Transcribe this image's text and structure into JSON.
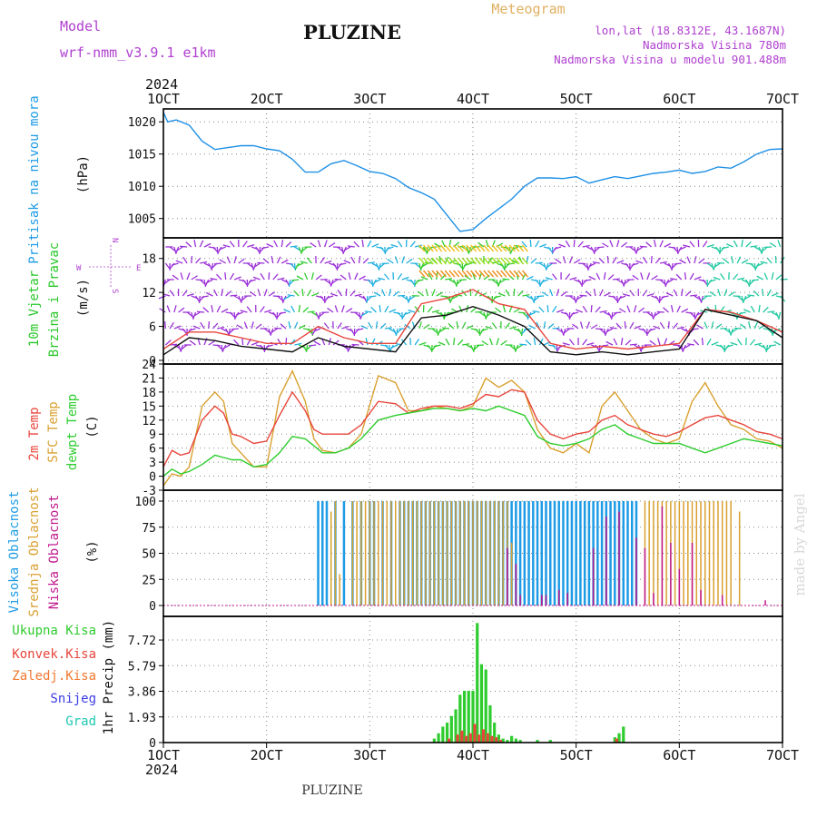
{
  "header": {
    "title": "PLUZINE",
    "model_label": "Model",
    "model_name": "wrf-nmm_v3.9.1 e1km",
    "meteogram_label": "Meteogram",
    "lonlat": "lon,lat (18.8312E, 43.1687N)",
    "elevation": "Nadmorska Visina 780m",
    "model_elevation": "Nadmorska Visina u modelu 901.488m",
    "footer_title": "PLUZINE",
    "watermark": "made by Angel"
  },
  "colors": {
    "pressure": "#1e90e6",
    "temp2m": "#e8463c",
    "sfc_temp": "#d9a030",
    "dewpt": "#2ecc2e",
    "high_cloud": "#1e9be6",
    "mid_cloud": "#d9a030",
    "low_cloud": "#c0188c",
    "total_precip": "#2ecc2e",
    "convective_precip": "#e8463c",
    "freezing_precip": "#f07830",
    "snow": "#3c3ce6",
    "graupel": "#20c8b4",
    "wind_label": "#28c828",
    "legend_purple": "#b040d0"
  },
  "time_axis": {
    "year": "2024",
    "ticks": [
      "1OCT",
      "2OCT",
      "3OCT",
      "4OCT",
      "5OCT",
      "6OCT",
      "7OCT"
    ],
    "start_hour": 0,
    "end_hour": 144
  },
  "panels": {
    "pressure": {
      "ylabel": "Pritisak na nivou mora",
      "unit": "(hPa)",
      "yticks": [
        "1005",
        "1010",
        "1015",
        "1020"
      ]
    },
    "wind": {
      "ylabel_1": "10m Vjetar",
      "ylabel_2": "Brzina i Pravac",
      "unit": "(m/s)",
      "yticks": [
        "0",
        "6",
        "12",
        "18"
      ],
      "compass_w": "W",
      "compass_e": "E",
      "compass_n": "N",
      "compass_s": "S"
    },
    "temperature": {
      "ylabel_1": "2m Temp",
      "ylabel_2": "SFC Temp",
      "ylabel_3": "dewpt Temp",
      "unit": "(C)",
      "yticks": [
        "-3",
        "0",
        "3",
        "6",
        "9",
        "12",
        "15",
        "18",
        "21",
        "24"
      ]
    },
    "cloud": {
      "ylabel_1": "Visoka Oblacnost",
      "ylabel_2": "Srednja Oblacnost",
      "ylabel_3": "Niska Oblacnost",
      "unit": "(%)",
      "yticks": [
        "0",
        "25",
        "50",
        "75",
        "100"
      ]
    },
    "precip": {
      "legend": [
        "Ukupna Kisa",
        "Konvek.Kisa",
        "Zaledj.Kisa",
        "Snijeg",
        "Grad"
      ],
      "ylabel": "1hr Precip (mm)",
      "yticks": [
        "0",
        "1.93",
        "3.86",
        "5.79",
        "7.72"
      ]
    }
  },
  "chart_data": [
    {
      "type": "line",
      "title": "Pritisak na nivou mora",
      "ylabel": "(hPa)",
      "ylim": [
        1002,
        1022
      ],
      "grid": true,
      "series": [
        {
          "name": "Pritisak na nivou mora",
          "x": [
            0,
            1,
            3,
            6,
            9,
            12,
            15,
            18,
            21,
            24,
            27,
            30,
            33,
            36,
            39,
            42,
            45,
            48,
            51,
            54,
            57,
            60,
            63,
            66,
            69,
            72,
            75,
            78,
            81,
            84,
            87,
            90,
            93,
            96,
            99,
            102,
            105,
            108,
            111,
            114,
            117,
            120,
            123,
            126,
            129,
            132,
            135,
            138,
            141,
            144
          ],
          "y": [
            1021.5,
            1020.0,
            1020.3,
            1019.5,
            1017.0,
            1015.7,
            1016.0,
            1016.3,
            1016.3,
            1015.8,
            1015.5,
            1014.2,
            1012.2,
            1012.2,
            1013.5,
            1014.0,
            1013.2,
            1012.3,
            1012.0,
            1011.2,
            1009.8,
            1009.0,
            1008.0,
            1005.5,
            1003.0,
            1003.3,
            1005.0,
            1006.5,
            1008.0,
            1010.0,
            1011.3,
            1011.3,
            1011.2,
            1011.5,
            1010.5,
            1011.0,
            1011.5,
            1011.2,
            1011.6,
            1012.0,
            1012.2,
            1012.5,
            1012.0,
            1012.3,
            1013.0,
            1012.8,
            1013.8,
            1015.0,
            1015.7,
            1015.8
          ]
        }
      ]
    },
    {
      "type": "line",
      "title": "10m Vjetar Brzina i Pravac",
      "ylabel": "(m/s)",
      "ylim": [
        0,
        21
      ],
      "grid": true,
      "series": [
        {
          "name": "wind speed",
          "x": [
            0,
            6,
            12,
            18,
            24,
            30,
            36,
            42,
            48,
            54,
            60,
            66,
            72,
            78,
            84,
            90,
            96,
            102,
            108,
            114,
            120,
            126,
            132,
            138,
            144
          ],
          "y": [
            1.0,
            4.0,
            3.5,
            2.5,
            2.0,
            1.5,
            4.0,
            2.5,
            2.0,
            1.5,
            7.5,
            8.0,
            9.5,
            8.0,
            6.0,
            1.5,
            1.0,
            1.5,
            1.0,
            1.5,
            2.0,
            9.0,
            8.0,
            7.0,
            4.0
          ]
        },
        {
          "name": "gust",
          "x": [
            0,
            6,
            12,
            18,
            24,
            30,
            36,
            42,
            48,
            54,
            60,
            66,
            72,
            78,
            84,
            90,
            96,
            102,
            108,
            114,
            120,
            126,
            132,
            138,
            144
          ],
          "y": [
            2.0,
            5.0,
            5.0,
            4.0,
            3.0,
            3.0,
            6.0,
            4.0,
            3.0,
            3.0,
            10.0,
            11.0,
            12.5,
            10.0,
            9.0,
            3.0,
            2.0,
            2.5,
            2.0,
            2.5,
            3.0,
            9.0,
            8.5,
            7.0,
            5.0
          ]
        }
      ]
    },
    {
      "type": "line",
      "title": "2m Temp / SFC Temp / dewpt Temp",
      "ylabel": "(C)",
      "ylim": [
        -3,
        24
      ],
      "grid": true,
      "series": [
        {
          "name": "2m Temp",
          "x": [
            0,
            2,
            4,
            6,
            9,
            12,
            14,
            16,
            18,
            21,
            24,
            27,
            30,
            33,
            35,
            37,
            40,
            43,
            46,
            50,
            54,
            57,
            60,
            63,
            66,
            69,
            72,
            75,
            78,
            81,
            84,
            87,
            90,
            93,
            96,
            99,
            102,
            105,
            108,
            111,
            114,
            117,
            120,
            123,
            126,
            129,
            132,
            135,
            138,
            141,
            144
          ],
          "y": [
            2.0,
            5.5,
            4.5,
            5.0,
            12.0,
            15.0,
            13.5,
            9.0,
            8.5,
            7.0,
            7.5,
            13.0,
            18.0,
            14.0,
            10.0,
            9.0,
            9.0,
            9.0,
            11.0,
            16.0,
            15.5,
            13.5,
            14.5,
            15.0,
            15.0,
            14.5,
            15.5,
            17.5,
            17.0,
            18.5,
            18.0,
            12.0,
            9.0,
            8.0,
            9.0,
            9.5,
            12.0,
            13.0,
            11.0,
            10.0,
            9.0,
            8.5,
            9.5,
            11.0,
            12.5,
            13.0,
            12.0,
            11.0,
            9.5,
            9.0,
            8.0
          ]
        },
        {
          "name": "SFC Temp",
          "x": [
            0,
            2,
            4,
            6,
            9,
            12,
            14,
            16,
            18,
            21,
            24,
            27,
            30,
            33,
            35,
            37,
            40,
            43,
            46,
            50,
            54,
            57,
            60,
            63,
            66,
            69,
            72,
            75,
            78,
            81,
            84,
            87,
            90,
            93,
            96,
            99,
            102,
            105,
            108,
            111,
            114,
            117,
            120,
            123,
            126,
            129,
            132,
            135,
            138,
            141,
            144
          ],
          "y": [
            -2.0,
            0.5,
            0.0,
            2.0,
            15.0,
            18.0,
            16.0,
            7.0,
            5.0,
            2.0,
            2.0,
            17.0,
            22.5,
            16.0,
            8.0,
            5.5,
            5.0,
            6.0,
            9.0,
            21.5,
            20.0,
            14.0,
            14.0,
            15.0,
            14.5,
            14.0,
            15.0,
            21.0,
            19.0,
            20.5,
            18.0,
            10.0,
            6.0,
            5.0,
            7.0,
            5.0,
            15.0,
            18.0,
            14.0,
            10.0,
            8.0,
            7.0,
            8.0,
            16.0,
            20.0,
            15.0,
            11.0,
            10.0,
            8.0,
            7.5,
            6.0
          ]
        },
        {
          "name": "dewpt Temp",
          "x": [
            0,
            2,
            4,
            6,
            9,
            12,
            14,
            16,
            18,
            21,
            24,
            27,
            30,
            33,
            35,
            37,
            40,
            43,
            46,
            50,
            54,
            57,
            60,
            63,
            66,
            69,
            72,
            75,
            78,
            81,
            84,
            87,
            90,
            93,
            96,
            99,
            102,
            105,
            108,
            111,
            114,
            117,
            120,
            123,
            126,
            129,
            132,
            135,
            138,
            141,
            144
          ],
          "y": [
            0.0,
            1.5,
            0.5,
            1.0,
            2.5,
            4.5,
            4.0,
            3.5,
            3.5,
            2.0,
            2.5,
            5.0,
            8.5,
            8.0,
            6.5,
            5.0,
            5.0,
            6.0,
            8.0,
            12.0,
            13.0,
            13.5,
            14.0,
            14.5,
            14.5,
            14.0,
            14.5,
            14.0,
            15.0,
            14.0,
            13.0,
            8.5,
            7.0,
            6.5,
            7.0,
            8.0,
            10.0,
            11.0,
            9.0,
            8.0,
            7.0,
            7.0,
            7.0,
            6.0,
            5.0,
            6.0,
            7.0,
            8.0,
            7.5,
            7.0,
            6.5
          ]
        }
      ]
    },
    {
      "type": "bar",
      "title": "Visoka / Srednja / Niska Oblacnost",
      "ylabel": "(%)",
      "ylim": [
        0,
        100
      ],
      "grid": true,
      "series": [
        {
          "name": "Visoka Oblacnost",
          "x": [
            36,
            37,
            38,
            40,
            42,
            44,
            46,
            48,
            49,
            51,
            53,
            55,
            56,
            57,
            58,
            59,
            60,
            61,
            62,
            63,
            64,
            65,
            66,
            67,
            68,
            69,
            70,
            71,
            72,
            73,
            74,
            75,
            76,
            77,
            78,
            79,
            80,
            81,
            82,
            83,
            84,
            85,
            86,
            87,
            88,
            89,
            90,
            91,
            92,
            93,
            94,
            95,
            96,
            97,
            98,
            99,
            100,
            101,
            102,
            103,
            104,
            105,
            106,
            107,
            108,
            109,
            110
          ],
          "y": [
            100,
            100,
            100,
            100,
            100,
            100,
            100,
            100,
            100,
            100,
            100,
            100,
            100,
            100,
            100,
            100,
            100,
            100,
            100,
            100,
            100,
            100,
            100,
            100,
            100,
            100,
            100,
            100,
            100,
            100,
            100,
            100,
            100,
            100,
            100,
            100,
            100,
            100,
            100,
            100,
            100,
            100,
            100,
            100,
            100,
            100,
            100,
            100,
            100,
            100,
            100,
            100,
            100,
            100,
            100,
            100,
            100,
            100,
            100,
            100,
            100,
            100,
            100,
            100,
            100,
            100,
            100
          ]
        },
        {
          "name": "Srednja Oblacnost",
          "x": [
            39,
            40,
            41,
            44,
            45,
            46,
            47,
            48,
            49,
            50,
            51,
            52,
            53,
            54,
            55,
            56,
            57,
            58,
            59,
            60,
            61,
            62,
            63,
            64,
            65,
            66,
            67,
            68,
            69,
            70,
            71,
            72,
            73,
            74,
            75,
            76,
            77,
            78,
            79,
            80,
            81,
            112,
            113,
            114,
            115,
            116,
            117,
            118,
            119,
            120,
            121,
            122,
            123,
            124,
            125,
            126,
            127,
            128,
            129,
            130,
            131,
            132,
            134
          ],
          "y": [
            90,
            100,
            30,
            100,
            100,
            100,
            100,
            100,
            100,
            100,
            100,
            100,
            100,
            100,
            100,
            100,
            100,
            100,
            100,
            100,
            100,
            100,
            100,
            100,
            100,
            100,
            100,
            100,
            100,
            100,
            100,
            100,
            100,
            100,
            100,
            100,
            100,
            100,
            100,
            100,
            60,
            100,
            100,
            100,
            100,
            100,
            100,
            100,
            100,
            100,
            100,
            100,
            100,
            100,
            100,
            100,
            100,
            100,
            100,
            100,
            100,
            100,
            90
          ]
        },
        {
          "name": "Niska Oblacnost",
          "x": [
            80,
            82,
            83,
            88,
            89,
            92,
            94,
            100,
            103,
            106,
            110,
            112,
            114,
            116,
            118,
            120,
            123,
            125,
            130,
            140
          ],
          "y": [
            55,
            40,
            10,
            10,
            10,
            15,
            12,
            55,
            85,
            90,
            65,
            55,
            12,
            95,
            60,
            35,
            60,
            15,
            10,
            5
          ]
        }
      ]
    },
    {
      "type": "bar",
      "title": "1hr Precip",
      "ylabel": "1hr Precip (mm)",
      "ylim": [
        0,
        9.5
      ],
      "grid": true,
      "series": [
        {
          "name": "Ukupna Kisa",
          "x": [
            63,
            64,
            65,
            66,
            67,
            68,
            69,
            70,
            71,
            72,
            73,
            74,
            75,
            76,
            77,
            78,
            79,
            80,
            81,
            82,
            83,
            87,
            90,
            105,
            106,
            107
          ],
          "y": [
            0.3,
            0.7,
            1.2,
            1.5,
            2.0,
            2.5,
            3.6,
            3.9,
            3.9,
            3.9,
            9.0,
            5.9,
            5.5,
            2.8,
            1.5,
            0.6,
            0.3,
            0.2,
            0.5,
            0.3,
            0.2,
            0.2,
            0.2,
            0.4,
            0.7,
            1.2
          ]
        },
        {
          "name": "Konvek.Kisa",
          "x": [
            66,
            68,
            69,
            70,
            71,
            72,
            73,
            74,
            75,
            76,
            77,
            78,
            105
          ],
          "y": [
            0.3,
            0.6,
            0.9,
            0.5,
            0.7,
            1.4,
            0.6,
            1.0,
            0.7,
            0.5,
            0.4,
            0.2,
            0.3
          ]
        }
      ]
    }
  ]
}
